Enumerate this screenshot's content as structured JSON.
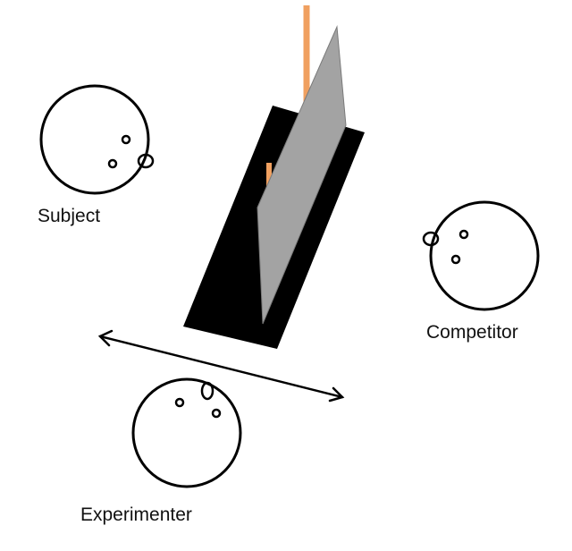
{
  "labels": {
    "subject": "Subject",
    "competitor": "Competitor",
    "experimenter": "Experimenter"
  },
  "colors": {
    "background": "#ffffff",
    "outline": "#000000",
    "board": "#000000",
    "screen": "#a3a3a3",
    "stick": "#f0a060"
  }
}
